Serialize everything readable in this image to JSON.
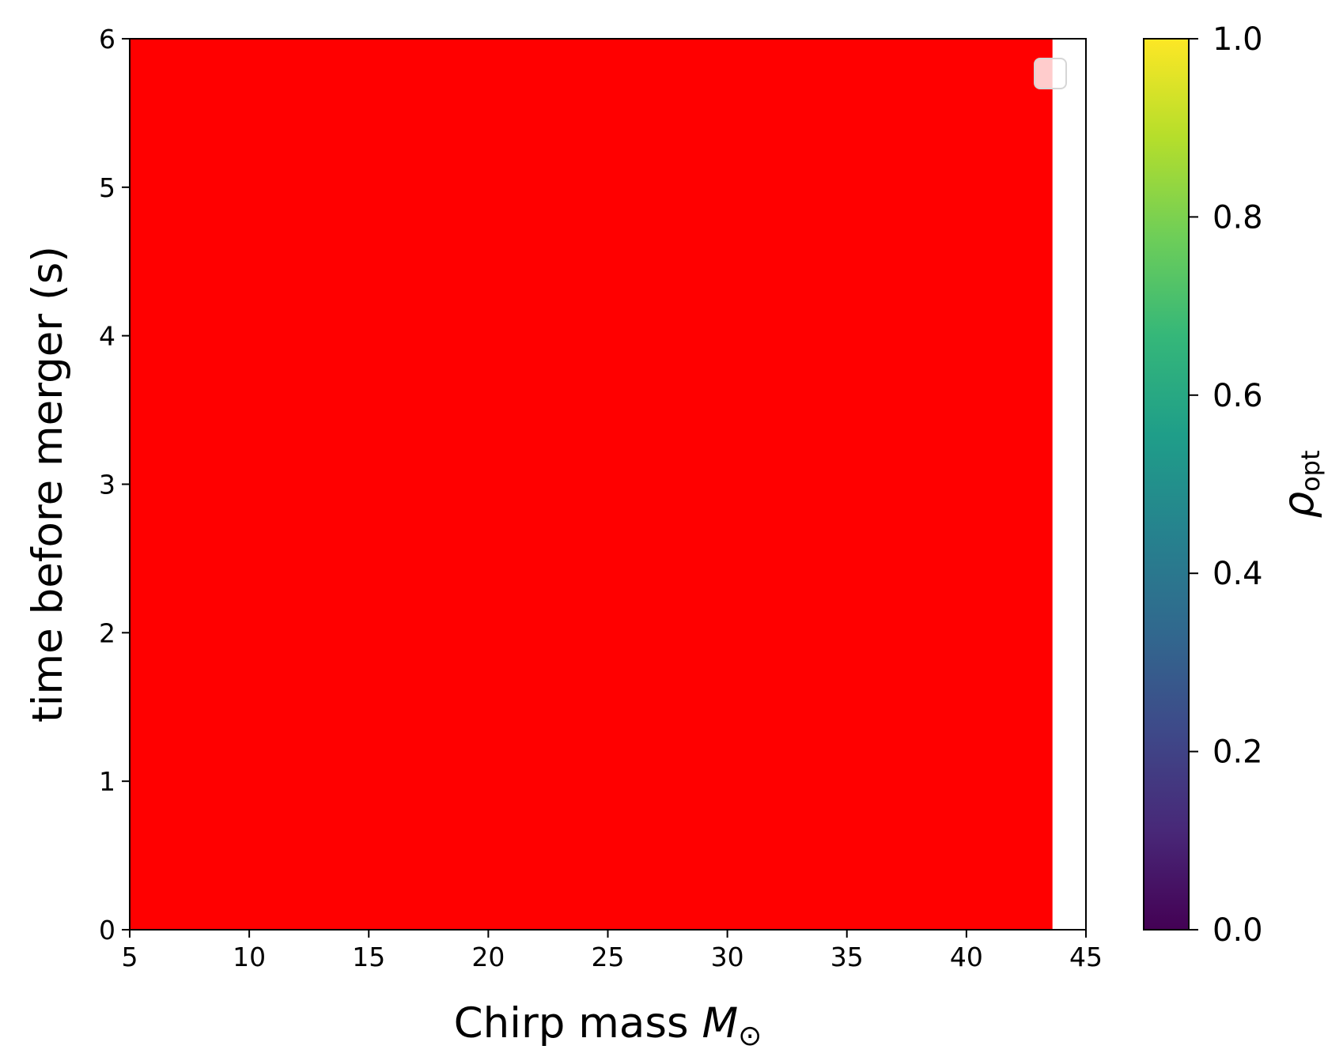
{
  "chart_data": {
    "type": "heatmap",
    "xlabel": "Chirp mass",
    "xlabel_symbol": "M",
    "xlabel_subscript": "⊙",
    "ylabel": "time before merger (s)",
    "xlim": [
      5,
      45
    ],
    "ylim": [
      0,
      6
    ],
    "xticks": [
      "5",
      "10",
      "15",
      "20",
      "25",
      "30",
      "35",
      "40",
      "45"
    ],
    "yticks": [
      "0",
      "1",
      "2",
      "3",
      "4",
      "5",
      "6"
    ],
    "filled_region": {
      "x": [
        5,
        43.6
      ],
      "y": [
        0,
        6
      ],
      "color": "#ff0000"
    },
    "legend": {
      "placement": "upper right",
      "entries": []
    },
    "colorbar": {
      "label_symbol": "ρ",
      "label_subscript": "opt",
      "range": [
        0.0,
        1.0
      ],
      "ticks": [
        "0.0",
        "0.2",
        "0.4",
        "0.6",
        "0.8",
        "1.0"
      ],
      "colormap": "viridis",
      "colormap_stops": [
        "#440154",
        "#482878",
        "#3e4989",
        "#31688e",
        "#26828e",
        "#1f9e89",
        "#35b779",
        "#6ece58",
        "#b5de2b",
        "#fde725"
      ]
    },
    "grid": false
  }
}
